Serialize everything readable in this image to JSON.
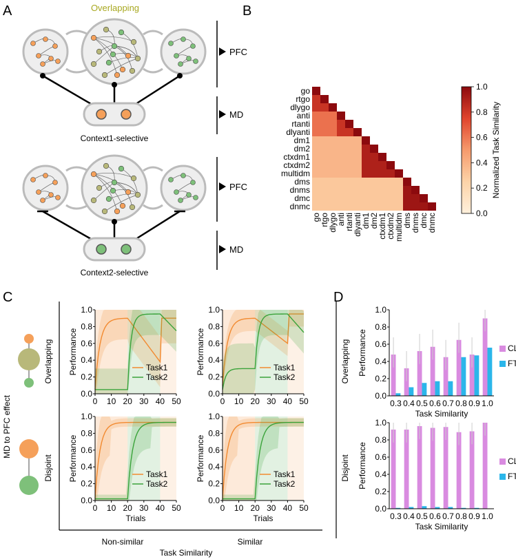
{
  "panels": {
    "a": "A",
    "b": "B",
    "c": "C",
    "d": "D"
  },
  "panel_a": {
    "overlapping_title": "Overlapping",
    "pfc_label": "PFC",
    "md_label": "MD",
    "context1": "Context1-selective",
    "context2": "Context2-selective",
    "colors": {
      "orange": "#f5a05a",
      "green": "#7ec07a",
      "olive": "#b8b87a",
      "title": "#a8a820"
    }
  },
  "panel_c": {
    "side_label": "MD to PFC effect",
    "row_labels": [
      "Overlapping",
      "Disjoint"
    ],
    "col_labels": [
      "Non-similar",
      "Similar"
    ],
    "bottom_label": "Task Similarity",
    "ylabel": "Performance",
    "xlabel": "Trials",
    "legend": [
      "Task1",
      "Task2"
    ],
    "colors": {
      "task1": "#f28a30",
      "task2": "#3aa33a"
    }
  },
  "chart_data": [
    {
      "id": "B",
      "type": "heatmap",
      "title": "",
      "tasks": [
        "go",
        "rtgo",
        "dlygo",
        "anti",
        "rtanti",
        "dlyanti",
        "dm1",
        "dm2",
        "ctxdm1",
        "ctxdm2",
        "multidm",
        "dms",
        "dnms",
        "dmc",
        "dnmc"
      ],
      "colorbar_label": "Normalized Task Similarity",
      "colorbar_ticks": [
        "0.0",
        "0.2",
        "0.4",
        "0.6",
        "0.8",
        "1.0"
      ],
      "vrange": [
        0,
        1
      ],
      "note": "lower-triangular similarity matrix; diagonal = 1; values estimated from color"
    },
    {
      "id": "C-overlapping-nonsimilar",
      "type": "line",
      "x": [
        0,
        50
      ],
      "xticks": [
        "0",
        "10",
        "20",
        "30",
        "40",
        "50"
      ],
      "ylim": [
        0,
        1
      ],
      "yticks": [
        "0.0",
        "0.2",
        "0.4",
        "0.6",
        "0.8",
        "1.0"
      ],
      "series": [
        {
          "name": "Task1",
          "note": "rises to ~0.9 by trial 20, decays to ~0.38 by trial 40, jumps to ~0.9"
        },
        {
          "name": "Task2",
          "note": "~0.05 until trial 20, rises to ~0.95, drops to ~0.75"
        }
      ]
    },
    {
      "id": "C-overlapping-similar",
      "type": "line",
      "x": [
        0,
        50
      ],
      "xticks": [
        "0",
        "10",
        "20",
        "30",
        "40",
        "50"
      ],
      "ylim": [
        0,
        1
      ],
      "yticks": [
        "0.0",
        "0.2",
        "0.4",
        "0.6",
        "0.8",
        "1.0"
      ],
      "series": [
        {
          "name": "Task1",
          "note": "rises to ~0.9, decays to ~0.6 by trial 40, jumps back to ~0.95"
        },
        {
          "name": "Task2",
          "note": "~0.3 until trial 20, rises to ~0.95, drops to ~0.72"
        }
      ]
    },
    {
      "id": "C-disjoint-nonsimilar",
      "type": "line",
      "x": [
        0,
        50
      ],
      "xticks": [
        "0",
        "10",
        "20",
        "30",
        "40",
        "50"
      ],
      "ylim": [
        0,
        1
      ],
      "yticks": [
        "0.0",
        "0.2",
        "0.4",
        "0.6",
        "0.8",
        "1.0"
      ],
      "series": [
        {
          "name": "Task1",
          "note": "rises to ~0.93 and stays"
        },
        {
          "name": "Task2",
          "note": "~0.02 until trial 20, rises to ~0.93 and stays"
        }
      ]
    },
    {
      "id": "C-disjoint-similar",
      "type": "line",
      "x": [
        0,
        50
      ],
      "xticks": [
        "0",
        "10",
        "20",
        "30",
        "40",
        "50"
      ],
      "ylim": [
        0,
        1
      ],
      "yticks": [
        "0.0",
        "0.2",
        "0.4",
        "0.6",
        "0.8",
        "1.0"
      ],
      "series": [
        {
          "name": "Task1",
          "note": "rises to ~0.93 and stays"
        },
        {
          "name": "Task2",
          "note": "~0.02 until trial 20, rises to ~0.93 and stays"
        }
      ]
    },
    {
      "id": "D-overlapping",
      "type": "bar",
      "row_label": "Overlapping",
      "categories": [
        "0.3",
        "0.4",
        "0.5",
        "0.6",
        "0.7",
        "0.8",
        "0.9",
        "1.0"
      ],
      "series": [
        {
          "name": "CL",
          "color": "#d98be0",
          "values": [
            0.48,
            0.32,
            0.52,
            0.57,
            0.45,
            0.65,
            0.48,
            0.9
          ]
        },
        {
          "name": "FT",
          "color": "#2bb6ea",
          "values": [
            0.03,
            0.1,
            0.15,
            0.17,
            0.17,
            0.45,
            0.47,
            0.56
          ]
        }
      ],
      "xlabel": "Task Similarity",
      "ylabel": "Performance",
      "ylim": [
        0,
        1
      ],
      "yticks": [
        "0.0",
        "0.2",
        "0.4",
        "0.6",
        "0.8",
        "1.0"
      ]
    },
    {
      "id": "D-disjoint",
      "type": "bar",
      "row_label": "Disjoint",
      "categories": [
        "0.3",
        "0.4",
        "0.5",
        "0.6",
        "0.7",
        "0.8",
        "0.9",
        "1.0"
      ],
      "series": [
        {
          "name": "CL",
          "color": "#d98be0",
          "values": [
            0.92,
            0.92,
            0.96,
            0.94,
            0.95,
            0.89,
            0.9,
            1.0
          ]
        },
        {
          "name": "FT",
          "color": "#2bb6ea",
          "values": [
            0.01,
            0.02,
            0.03,
            0.02,
            0.02,
            0.01,
            0.01,
            0.0
          ]
        }
      ],
      "xlabel": "Task Similarity",
      "ylabel": "Performance",
      "ylim": [
        0,
        1
      ],
      "yticks": [
        "0.0",
        "0.2",
        "0.4",
        "0.6",
        "0.8",
        "1.0"
      ]
    }
  ]
}
